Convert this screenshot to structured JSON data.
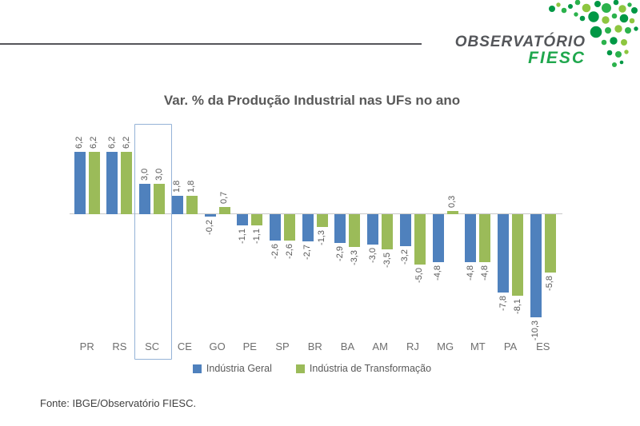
{
  "logo": {
    "brand_top": "OBSERVATÓRIO",
    "brand_bottom": "FIESC",
    "brand_text_color": "#54565A",
    "brand_green": "#1FA74D",
    "dots_icon": "brazil-map-dots-icon",
    "dot_colors": [
      "#009845",
      "#2BB24C",
      "#8DC63F"
    ]
  },
  "chart_data": {
    "type": "bar",
    "title": "Var. % da Produção Industrial nas UFs no ano",
    "categories": [
      "PR",
      "RS",
      "SC",
      "CE",
      "GO",
      "PE",
      "SP",
      "BR",
      "BA",
      "AM",
      "RJ",
      "MG",
      "MT",
      "PA",
      "ES"
    ],
    "series": [
      {
        "name": "Indústria Geral",
        "color": "#4F81BD",
        "values": [
          6.2,
          6.2,
          3.0,
          1.8,
          -0.2,
          -1.1,
          -2.6,
          -2.7,
          -2.9,
          -3.0,
          -3.2,
          -4.8,
          -4.8,
          -7.8,
          -10.3
        ]
      },
      {
        "name": "Indústria de Transformação",
        "color": "#9BBB59",
        "values": [
          6.2,
          6.2,
          3.0,
          1.8,
          0.7,
          -1.1,
          -2.6,
          -1.3,
          -3.3,
          -3.5,
          -5.0,
          0.3,
          -4.8,
          -8.1,
          -5.8
        ]
      }
    ],
    "highlighted_category": "SC",
    "highlight_border_color": "#95B3D7",
    "value_label_format": "comma-decimal",
    "legend_position": "bottom",
    "grid": false,
    "xlabel": "",
    "ylabel": ""
  },
  "footer": {
    "source": "Fonte: IBGE/Observatório FIESC."
  }
}
